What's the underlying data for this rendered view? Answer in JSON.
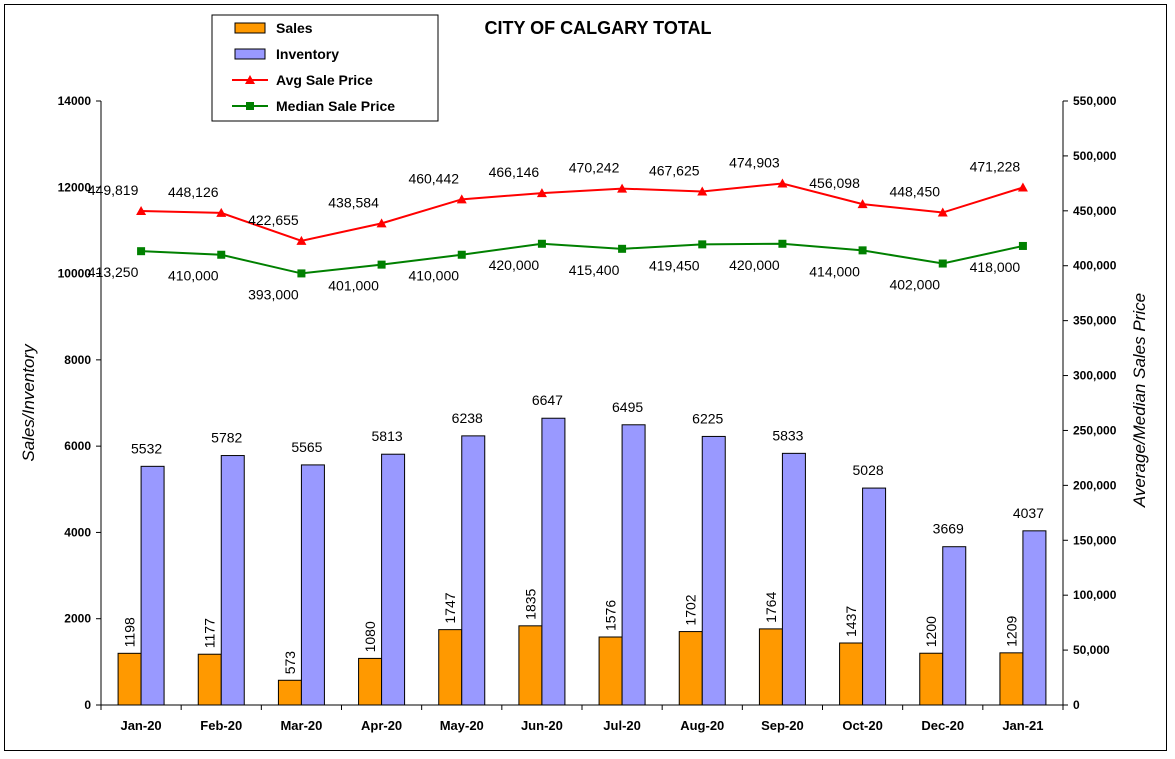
{
  "chart_data": {
    "type": "bar",
    "title": "CITY OF CALGARY TOTAL",
    "categories": [
      "Jan-20",
      "Feb-20",
      "Mar-20",
      "Apr-20",
      "May-20",
      "Jun-20",
      "Jul-20",
      "Aug-20",
      "Sep-20",
      "Oct-20",
      "Dec-20",
      "Jan-21"
    ],
    "ylabel_left": "Sales/Inventory",
    "ylabel_right": "Average/Median Sales Price",
    "ylim_left": [
      0,
      14000
    ],
    "ylim_right": [
      0,
      550000
    ],
    "yticks_left": [
      "0",
      "2000",
      "4000",
      "6000",
      "8000",
      "10000",
      "12000",
      "14000"
    ],
    "yticks_right": [
      "0",
      "50,000",
      "100,000",
      "150,000",
      "200,000",
      "250,000",
      "300,000",
      "350,000",
      "400,000",
      "450,000",
      "500,000",
      "550,000"
    ],
    "legend_position": "top-left",
    "grid": false,
    "series": [
      {
        "name": "Sales",
        "type": "bar",
        "axis": "left",
        "color": "#FF9900",
        "values": [
          1198,
          1177,
          573,
          1080,
          1747,
          1835,
          1576,
          1702,
          1764,
          1437,
          1200,
          1209
        ],
        "labels": [
          "1198",
          "1177",
          "573",
          "1080",
          "1747",
          "1835",
          "1576",
          "1702",
          "1764",
          "1437",
          "1200",
          "1209"
        ]
      },
      {
        "name": "Inventory",
        "type": "bar",
        "axis": "left",
        "color": "#9999FF",
        "values": [
          5532,
          5782,
          5565,
          5813,
          6238,
          6647,
          6495,
          6225,
          5833,
          5028,
          3669,
          4037
        ],
        "labels": [
          "5532",
          "5782",
          "5565",
          "5813",
          "6238",
          "6647",
          "6495",
          "6225",
          "5833",
          "5028",
          "3669",
          "4037"
        ]
      },
      {
        "name": "Avg Sale Price",
        "type": "line",
        "axis": "right",
        "color": "#FF0000",
        "marker": "triangle",
        "values": [
          449819,
          448126,
          422655,
          438584,
          460442,
          466146,
          470242,
          467625,
          474903,
          456098,
          448450,
          471228
        ],
        "labels": [
          "449,819",
          "448,126",
          "422,655",
          "438,584",
          "460,442",
          "466,146",
          "470,242",
          "467,625",
          "474,903",
          "456,098",
          "448,450",
          "471,228"
        ]
      },
      {
        "name": "Median Sale Price",
        "type": "line",
        "axis": "right",
        "color": "#008000",
        "marker": "square",
        "values": [
          413250,
          410000,
          393000,
          401000,
          410000,
          420000,
          415400,
          419450,
          420000,
          414000,
          402000,
          418000
        ],
        "labels": [
          "413,250",
          "410,000",
          "393,000",
          "401,000",
          "410,000",
          "420,000",
          "415,400",
          "419,450",
          "420,000",
          "414,000",
          "402,000",
          "418,000"
        ]
      }
    ]
  }
}
